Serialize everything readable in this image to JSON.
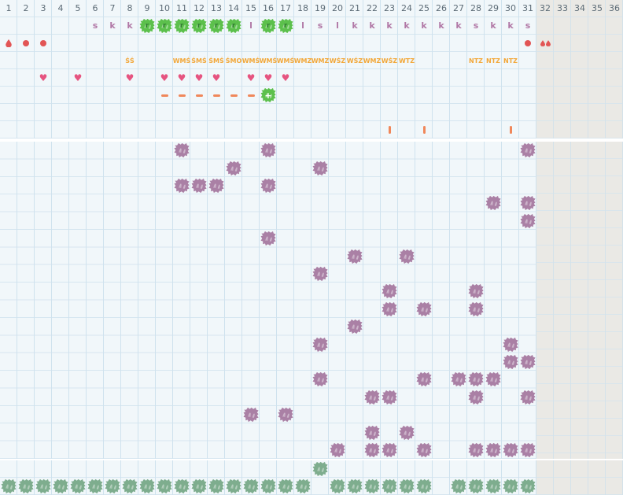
{
  "app_title": "monthly-shift-schedule-grid",
  "colors": {
    "cell_bg": "#f1f7fa",
    "grid_line": "#cfe2ee",
    "out_of_month_bg": "#eae9e5",
    "day_number": "#5c6b76",
    "duty_letter": "#b178a6",
    "code_orange": "#f2a738",
    "heart_pink": "#e65480",
    "red_mark": "#e25555",
    "dash_salmon": "#f0875a",
    "flower_green": "#5cc04c",
    "blob_purple": "#aa80a5",
    "summary_green": "#7ead8e"
  },
  "layout": {
    "columns": 36,
    "gray_from_col": 32,
    "main_rows": 18
  },
  "header_numbers": [
    1,
    2,
    3,
    4,
    5,
    6,
    7,
    8,
    9,
    10,
    11,
    12,
    13,
    14,
    15,
    16,
    17,
    18,
    19,
    20,
    21,
    22,
    23,
    24,
    25,
    26,
    27,
    28,
    29,
    30,
    31,
    32,
    33,
    34,
    35,
    36
  ],
  "duty_letters": [
    {
      "col": 6,
      "ch": "s"
    },
    {
      "col": 7,
      "ch": "k"
    },
    {
      "col": 8,
      "ch": "k"
    },
    {
      "col": 15,
      "ch": "l"
    },
    {
      "col": 18,
      "ch": "l"
    },
    {
      "col": 19,
      "ch": "s"
    },
    {
      "col": 20,
      "ch": "l"
    },
    {
      "col": 21,
      "ch": "k"
    },
    {
      "col": 22,
      "ch": "k"
    },
    {
      "col": 23,
      "ch": "k"
    },
    {
      "col": 24,
      "ch": "k"
    },
    {
      "col": 25,
      "ch": "k"
    },
    {
      "col": 26,
      "ch": "k"
    },
    {
      "col": 27,
      "ch": "k"
    },
    {
      "col": 28,
      "ch": "s"
    },
    {
      "col": 29,
      "ch": "k"
    },
    {
      "col": 30,
      "ch": "k"
    },
    {
      "col": 31,
      "ch": "s"
    }
  ],
  "green_flowers": {
    "cols": [
      9,
      10,
      11,
      12,
      13,
      14,
      16,
      17
    ],
    "glyph": "r"
  },
  "red_marks": [
    {
      "col": 1,
      "type": "drop"
    },
    {
      "col": 2,
      "type": "dot"
    },
    {
      "col": 3,
      "type": "dot"
    },
    {
      "col": 31,
      "type": "dot"
    },
    {
      "col": 32,
      "type": "drops2"
    }
  ],
  "codes": [
    {
      "col": 8,
      "text": "ŚŚ"
    },
    {
      "col": 11,
      "text": "WMŚ"
    },
    {
      "col": 12,
      "text": "ŚMŚ"
    },
    {
      "col": 13,
      "text": "ŚMŚ"
    },
    {
      "col": 14,
      "text": "ŚMO"
    },
    {
      "col": 15,
      "text": "WMŚ"
    },
    {
      "col": 16,
      "text": "WMŚ"
    },
    {
      "col": 17,
      "text": "WMŚ"
    },
    {
      "col": 18,
      "text": "WMZ"
    },
    {
      "col": 19,
      "text": "WMZ"
    },
    {
      "col": 20,
      "text": "WŚZ"
    },
    {
      "col": 21,
      "text": "WŚZ"
    },
    {
      "col": 22,
      "text": "WMZ"
    },
    {
      "col": 23,
      "text": "WŚZ"
    },
    {
      "col": 24,
      "text": "WTZ"
    },
    {
      "col": 28,
      "text": "NTZ"
    },
    {
      "col": 29,
      "text": "NTZ"
    },
    {
      "col": 30,
      "text": "NTZ"
    }
  ],
  "hearts": [
    3,
    5,
    8,
    10,
    11,
    12,
    13,
    15,
    16,
    17
  ],
  "dashes": [
    10,
    11,
    12,
    13,
    14,
    15
  ],
  "plus_flower": {
    "col": 16,
    "glyph": "+"
  },
  "bars": [
    23,
    25,
    30
  ],
  "main_blobs": [
    {
      "row": 1,
      "cols": [
        11,
        16,
        31
      ]
    },
    {
      "row": 2,
      "cols": [
        14,
        19
      ]
    },
    {
      "row": 3,
      "cols": [
        11,
        12,
        13,
        16
      ]
    },
    {
      "row": 4,
      "cols": [
        29,
        31
      ]
    },
    {
      "row": 5,
      "cols": [
        31
      ]
    },
    {
      "row": 6,
      "cols": [
        16
      ]
    },
    {
      "row": 7,
      "cols": [
        21,
        24
      ]
    },
    {
      "row": 8,
      "cols": [
        19
      ]
    },
    {
      "row": 9,
      "cols": [
        23,
        28
      ]
    },
    {
      "row": 10,
      "cols": [
        23,
        25,
        28
      ]
    },
    {
      "row": 11,
      "cols": [
        21
      ]
    },
    {
      "row": 12,
      "cols": [
        19,
        30
      ]
    },
    {
      "row": 13,
      "cols": [
        30,
        31
      ]
    },
    {
      "row": 14,
      "cols": [
        19,
        25,
        27,
        28,
        29
      ]
    },
    {
      "row": 15,
      "cols": [
        22,
        23,
        28,
        31
      ]
    },
    {
      "row": 16,
      "cols": [
        15,
        17
      ]
    },
    {
      "row": 17,
      "cols": [
        22,
        24
      ]
    },
    {
      "row": 18,
      "cols": [
        20,
        22,
        23,
        25,
        28,
        29,
        30,
        31
      ]
    }
  ],
  "summary": {
    "upper_cols": [
      19
    ],
    "lower_cols": [
      1,
      2,
      3,
      4,
      5,
      6,
      7,
      8,
      9,
      10,
      11,
      12,
      13,
      14,
      15,
      16,
      17,
      18,
      20,
      21,
      22,
      23,
      24,
      25,
      27,
      28,
      29,
      30,
      31
    ]
  }
}
